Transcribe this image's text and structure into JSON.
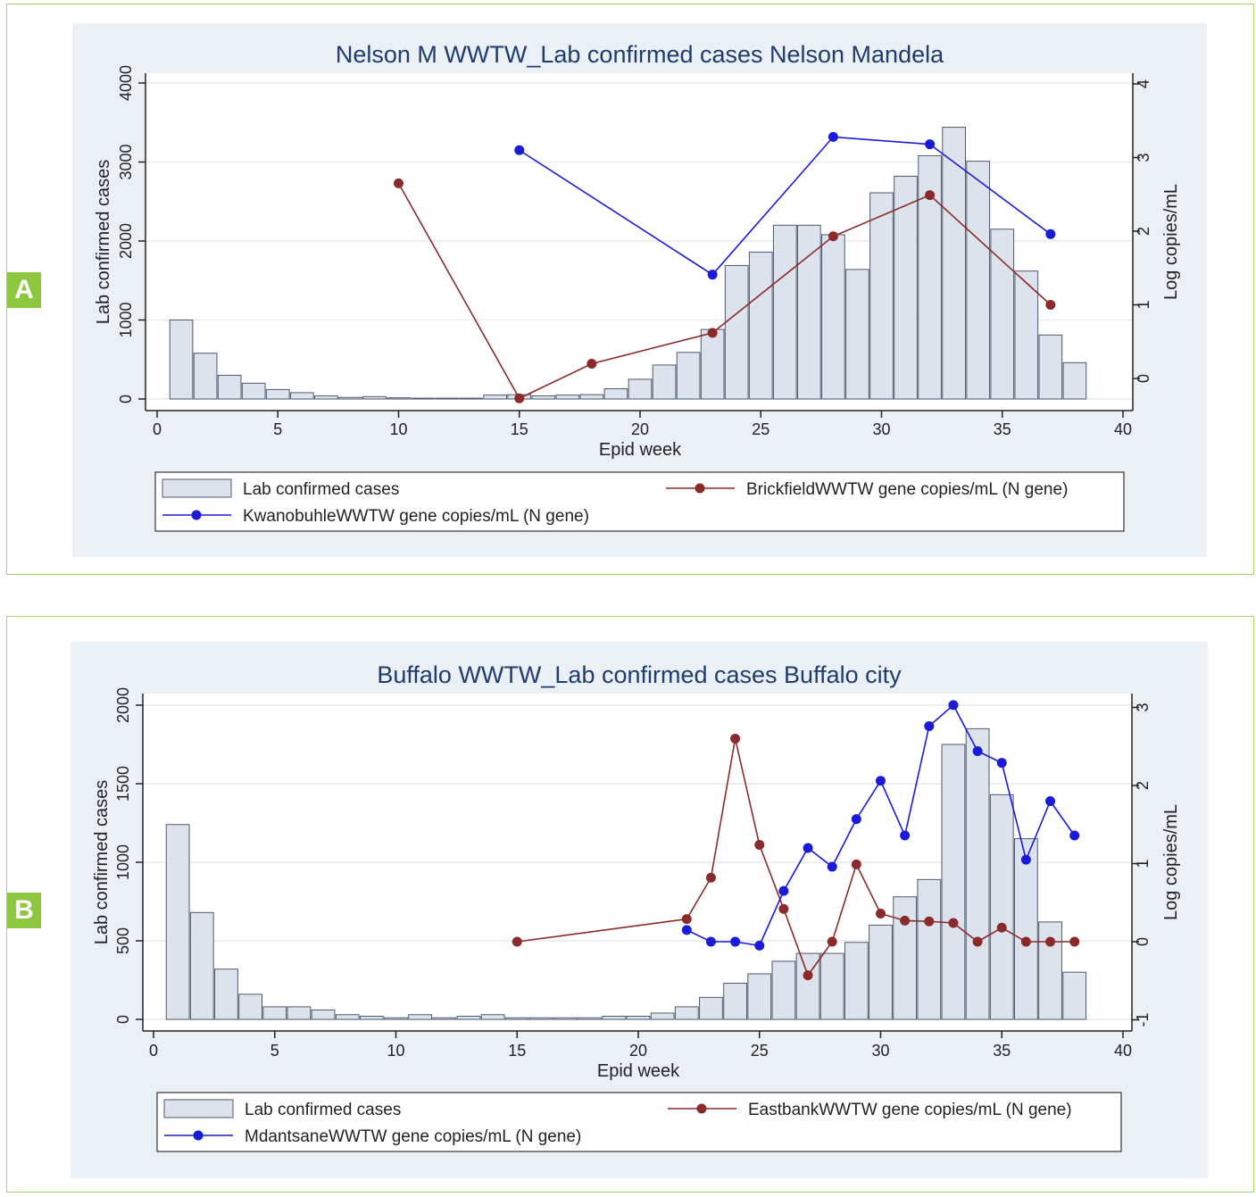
{
  "panels": [
    {
      "letter": "A"
    },
    {
      "letter": "B"
    }
  ],
  "chart_data": [
    {
      "type": "bar+line",
      "title": "Nelson M WWTW_Lab confirmed cases Nelson Mandela",
      "xlabel": "Epid week",
      "ylabel": "Lab confirmed cases",
      "y2label": "Log copies/mL",
      "xlim": [
        0,
        40
      ],
      "xticks": [
        0,
        5,
        10,
        15,
        20,
        25,
        30,
        35,
        40
      ],
      "ylim": [
        0,
        4000
      ],
      "yticks": [
        0,
        1000,
        2000,
        3000,
        4000
      ],
      "y2lim": [
        0,
        4
      ],
      "y2ticks": [
        0,
        1,
        2,
        3,
        4
      ],
      "grid": true,
      "legend_position": "bottom",
      "bars": {
        "name": "Lab confirmed cases",
        "color": "#dde3ec",
        "weeks": [
          1,
          2,
          3,
          4,
          5,
          6,
          7,
          8,
          9,
          10,
          11,
          12,
          13,
          14,
          15,
          16,
          17,
          18,
          19,
          20,
          21,
          22,
          23,
          24,
          25,
          26,
          27,
          28,
          29,
          30,
          31,
          32,
          33,
          34,
          35,
          36,
          37,
          38
        ],
        "values": [
          1000,
          580,
          300,
          200,
          120,
          80,
          40,
          20,
          30,
          15,
          10,
          10,
          10,
          50,
          55,
          40,
          50,
          55,
          130,
          250,
          430,
          590,
          880,
          1690,
          1860,
          2200,
          2200,
          2080,
          1640,
          2610,
          2820,
          3080,
          3440,
          3010,
          2150,
          1620,
          810,
          460
        ]
      },
      "series": [
        {
          "name": "BrickfieldWWTW gene copies/mL (N gene)",
          "color": "#8b2a2a",
          "axis": "right",
          "x": [
            10,
            15,
            18,
            23,
            28,
            32,
            37
          ],
          "values": [
            2.65,
            -0.27,
            0.2,
            0.62,
            1.93,
            2.49,
            1.0
          ]
        },
        {
          "name": "KwanobuhleWWTW gene copies/mL (N gene)",
          "color": "#1a1ad9",
          "axis": "right",
          "x": [
            15,
            23,
            28,
            32,
            37
          ],
          "values": [
            3.1,
            1.41,
            3.28,
            3.18,
            1.96
          ]
        }
      ]
    },
    {
      "type": "bar+line",
      "title": "Buffalo WWTW_Lab confirmed cases Buffalo city",
      "xlabel": "Epid week",
      "ylabel": "Lab confirmed cases",
      "y2label": "Log copies/mL",
      "xlim": [
        0,
        40
      ],
      "xticks": [
        0,
        5,
        10,
        15,
        20,
        25,
        30,
        35,
        40
      ],
      "ylim": [
        0,
        2000
      ],
      "yticks": [
        0,
        500,
        1000,
        1500,
        2000
      ],
      "y2lim": [
        -1,
        3
      ],
      "y2ticks": [
        -1,
        0,
        1,
        2,
        3
      ],
      "grid": true,
      "legend_position": "bottom",
      "bars": {
        "name": "Lab confirmed cases",
        "color": "#dde3ec",
        "weeks": [
          1,
          2,
          3,
          4,
          5,
          6,
          7,
          8,
          9,
          10,
          11,
          12,
          13,
          14,
          15,
          16,
          17,
          18,
          19,
          20,
          21,
          22,
          23,
          24,
          25,
          26,
          27,
          28,
          29,
          30,
          31,
          32,
          33,
          34,
          35,
          36,
          37,
          38
        ],
        "values": [
          1240,
          680,
          320,
          160,
          80,
          80,
          60,
          30,
          20,
          10,
          30,
          10,
          20,
          30,
          10,
          10,
          10,
          10,
          20,
          20,
          40,
          80,
          140,
          230,
          290,
          370,
          420,
          420,
          490,
          600,
          780,
          890,
          1750,
          1850,
          1430,
          1150,
          620,
          300
        ]
      },
      "series": [
        {
          "name": "EastbankWWTW gene copies/mL (N gene)",
          "color": "#8b2a2a",
          "axis": "right",
          "x": [
            15,
            22,
            23,
            24,
            25,
            26,
            27,
            28,
            29,
            30,
            31,
            32,
            33,
            34,
            35,
            36,
            37,
            38
          ],
          "values": [
            0.0,
            0.29,
            0.82,
            2.6,
            1.24,
            0.42,
            -0.43,
            0.0,
            0.99,
            0.36,
            0.27,
            0.26,
            0.24,
            0.0,
            0.18,
            0.0,
            0.0,
            0.0
          ]
        },
        {
          "name": "MdantsaneWWTW gene copies/mL (N gene)",
          "color": "#1a1ad9",
          "axis": "right",
          "x": [
            22,
            23,
            24,
            25,
            26,
            27,
            28,
            29,
            30,
            31,
            32,
            33,
            34,
            35,
            36,
            37,
            38
          ],
          "values": [
            0.15,
            0.0,
            0.0,
            -0.05,
            0.65,
            1.2,
            0.96,
            1.57,
            2.06,
            1.36,
            2.76,
            3.03,
            2.44,
            2.29,
            1.05,
            1.8,
            1.36
          ]
        }
      ]
    }
  ]
}
